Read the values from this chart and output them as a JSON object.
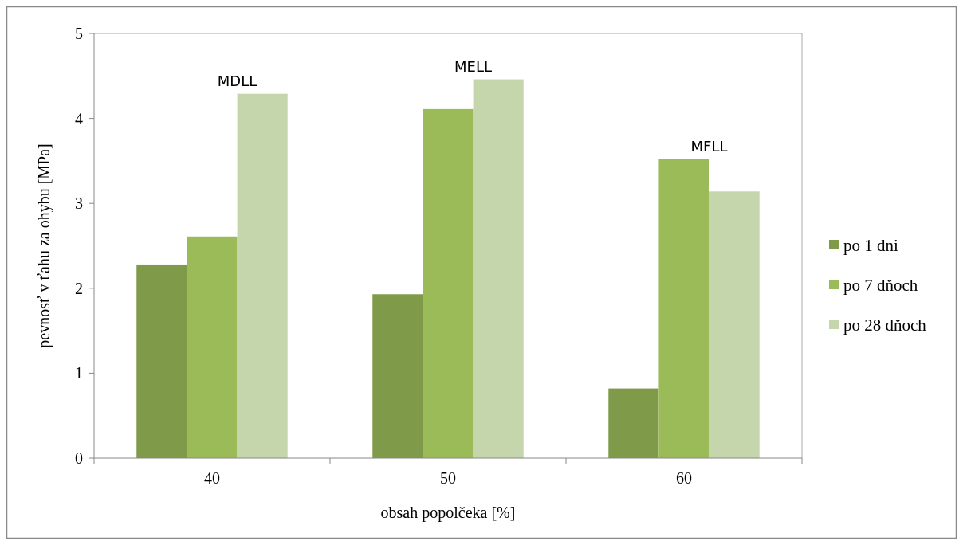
{
  "chart_data": {
    "type": "bar",
    "xlabel": "obsah popolčeka [%]",
    "ylabel": "pevnosť v ťahu za ohybu [MPa]",
    "categories": [
      "40",
      "50",
      "60"
    ],
    "series": [
      {
        "name": "po 1 dni",
        "color": "#7f9a48",
        "values": [
          2.28,
          1.93,
          0.82
        ]
      },
      {
        "name": "po 7 dňoch",
        "color": "#9bbb59",
        "values": [
          2.61,
          4.11,
          3.52
        ]
      },
      {
        "name": "po 28 dňoch",
        "color": "#c6d6ac",
        "values": [
          4.29,
          4.46,
          3.14
        ]
      }
    ],
    "ylim": [
      0,
      5
    ],
    "yticks": [
      0,
      1,
      2,
      3,
      4,
      5
    ],
    "legend": "right",
    "grid": false,
    "annotations": [
      "MDLL",
      "MELL",
      "MFLL"
    ]
  }
}
